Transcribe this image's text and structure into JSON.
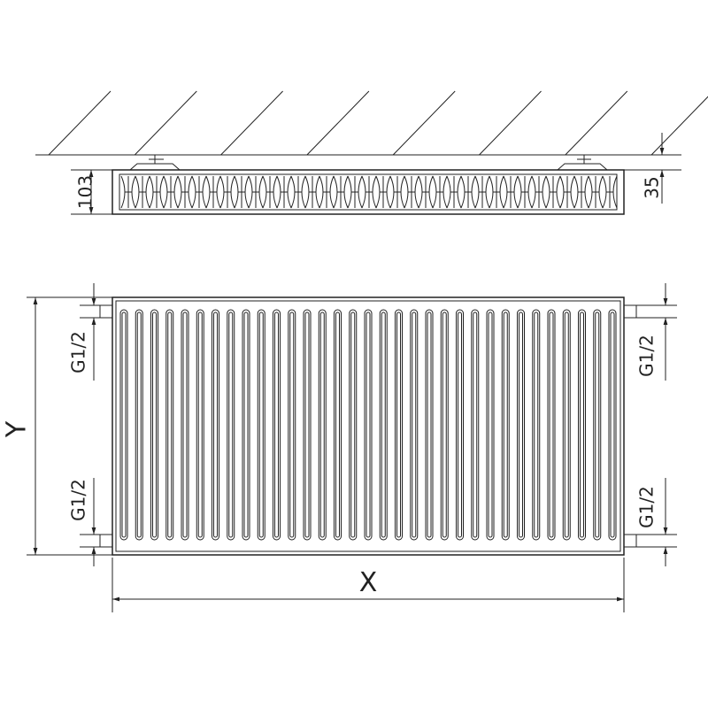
{
  "top_view": {
    "depth_label": "103",
    "wall_gap_label": "35"
  },
  "front_view": {
    "height_label": "Y",
    "width_label": "X",
    "connection_labels": [
      "G1/2",
      "G1/2",
      "G1/2",
      "G1/2"
    ],
    "channel_count": 33
  },
  "colors": {
    "line": "#222222"
  }
}
